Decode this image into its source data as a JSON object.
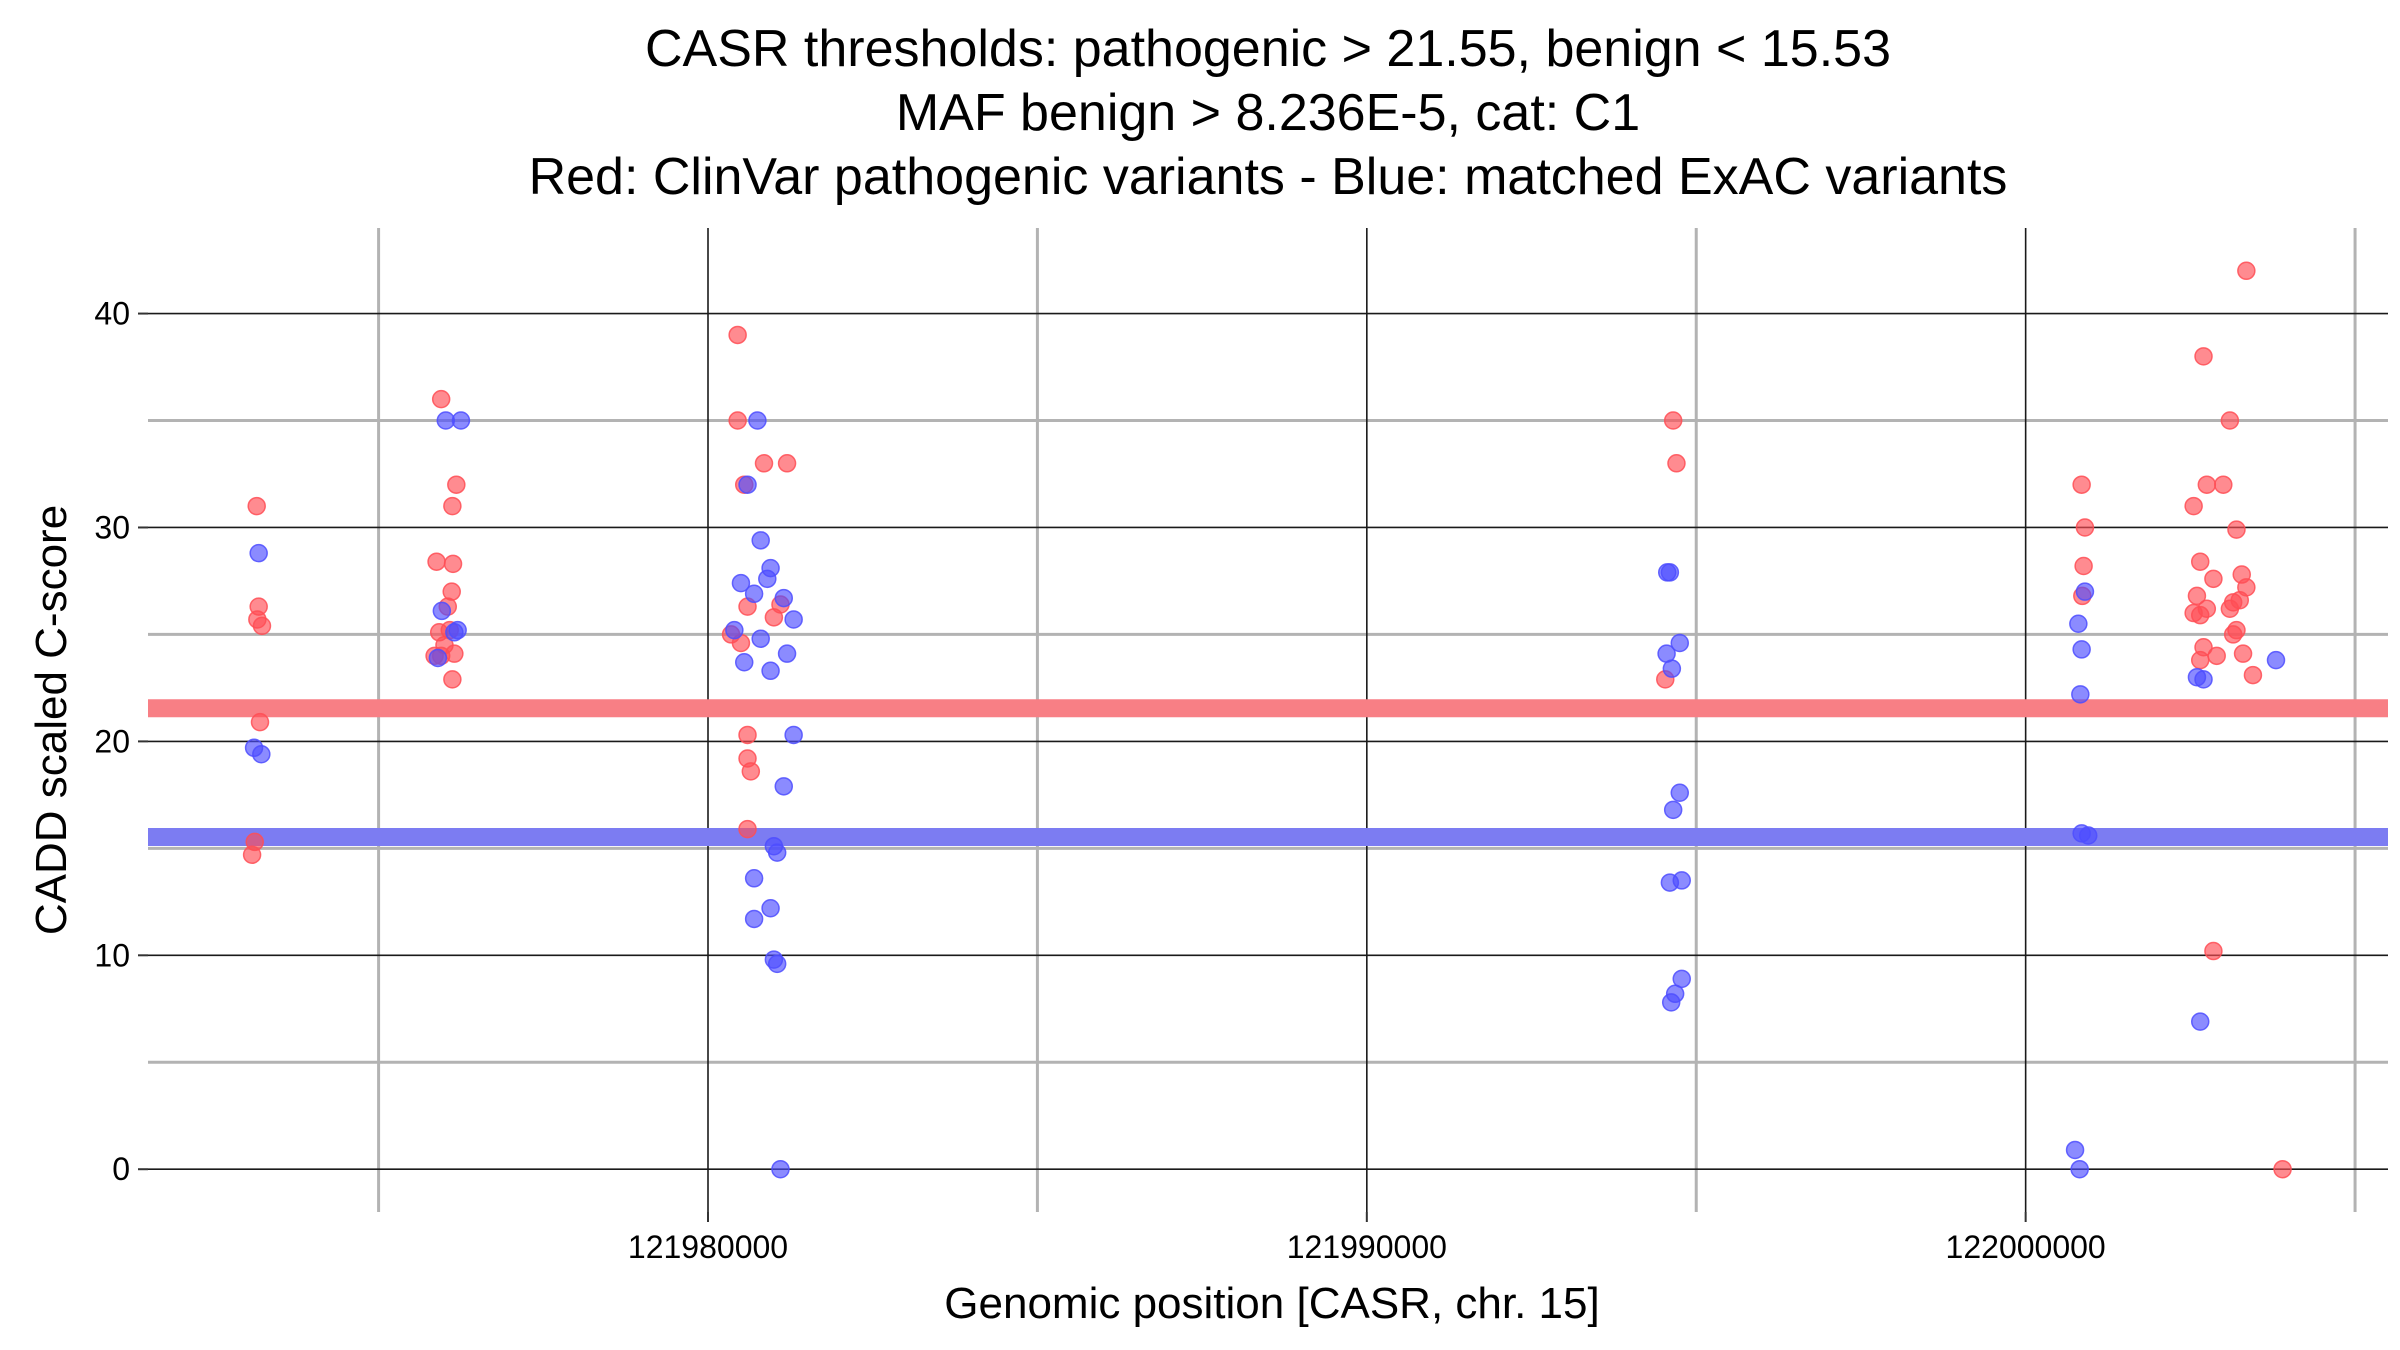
{
  "chart_data": {
    "type": "scatter",
    "title_lines": [
      "CASR thresholds: pathogenic > 21.55, benign < 15.53",
      "MAF benign > 8.236E-5, cat: C1",
      "Red: ClinVar pathogenic variants - Blue: matched ExAC variants"
    ],
    "xlabel": "Genomic position [CASR, chr. 15]",
    "ylabel": "CADD scaled C-score",
    "xlim": [
      121971500,
      122005500
    ],
    "ylim": [
      -2,
      44
    ],
    "x_major_ticks": [
      121980000,
      121990000,
      122000000
    ],
    "x_minor_ticks": [
      121975000,
      121985000,
      121995000,
      122005000
    ],
    "y_major_ticks": [
      0,
      10,
      20,
      30,
      40
    ],
    "y_minor_ticks": [
      5,
      15,
      25,
      35
    ],
    "grid": true,
    "thresholds": [
      {
        "label": "pathogenic",
        "value": 21.55,
        "color": "#f87f85"
      },
      {
        "label": "benign",
        "value": 15.53,
        "color": "#7c7cf2"
      }
    ],
    "colors": {
      "pathogenic": "#ff4d55",
      "benign": "#4d4dff"
    },
    "series": [
      {
        "key": "pathogenic",
        "points": [
          [
            121973150,
            31.0
          ],
          [
            121973180,
            26.3
          ],
          [
            121973160,
            25.7
          ],
          [
            121973230,
            25.4
          ],
          [
            121973200,
            20.9
          ],
          [
            121973120,
            15.3
          ],
          [
            121973080,
            14.7
          ],
          [
            121975950,
            36.0
          ],
          [
            121976180,
            32.0
          ],
          [
            121976120,
            31.0
          ],
          [
            121976130,
            28.3
          ],
          [
            121975880,
            28.4
          ],
          [
            121976110,
            27.0
          ],
          [
            121976050,
            26.3
          ],
          [
            121975920,
            25.1
          ],
          [
            121976080,
            25.2
          ],
          [
            121975850,
            24.0
          ],
          [
            121976000,
            24.5
          ],
          [
            121976150,
            24.1
          ],
          [
            121975950,
            24.0
          ],
          [
            121976120,
            22.9
          ],
          [
            121980450,
            39.0
          ],
          [
            121980450,
            35.0
          ],
          [
            121980850,
            33.0
          ],
          [
            121981200,
            33.0
          ],
          [
            121980550,
            32.0
          ],
          [
            121981000,
            25.8
          ],
          [
            121981100,
            26.4
          ],
          [
            121980600,
            26.3
          ],
          [
            121980350,
            25.0
          ],
          [
            121980500,
            24.6
          ],
          [
            121980600,
            20.3
          ],
          [
            121980600,
            19.2
          ],
          [
            121980650,
            18.6
          ],
          [
            121980600,
            15.9
          ],
          [
            121994650,
            35.0
          ],
          [
            121994700,
            33.0
          ],
          [
            121994530,
            22.9
          ],
          [
            122000850,
            32.0
          ],
          [
            122000900,
            30.0
          ],
          [
            122000880,
            28.2
          ],
          [
            122000860,
            26.8
          ],
          [
            122002550,
            31.0
          ],
          [
            122002750,
            32.0
          ],
          [
            122002650,
            28.4
          ],
          [
            122002850,
            27.6
          ],
          [
            122002600,
            26.8
          ],
          [
            122002750,
            26.2
          ],
          [
            122002550,
            26.0
          ],
          [
            122002650,
            25.9
          ],
          [
            122002700,
            24.4
          ],
          [
            122002650,
            23.8
          ],
          [
            122002900,
            24.0
          ],
          [
            122002700,
            38.0
          ],
          [
            122003100,
            35.0
          ],
          [
            122003000,
            32.0
          ],
          [
            122003200,
            29.9
          ],
          [
            122003280,
            27.8
          ],
          [
            122003350,
            27.2
          ],
          [
            122003150,
            26.5
          ],
          [
            122003250,
            26.6
          ],
          [
            122003100,
            26.2
          ],
          [
            122003200,
            25.2
          ],
          [
            122003150,
            25.0
          ],
          [
            122003300,
            24.1
          ],
          [
            122003450,
            23.1
          ],
          [
            122003350,
            42.0
          ],
          [
            122002850,
            10.2
          ],
          [
            122003900,
            0.0
          ]
        ]
      },
      {
        "key": "benign",
        "points": [
          [
            121973180,
            28.8
          ],
          [
            121973110,
            19.7
          ],
          [
            121973220,
            19.4
          ],
          [
            121976020,
            35.0
          ],
          [
            121976250,
            35.0
          ],
          [
            121975960,
            26.1
          ],
          [
            121976150,
            25.1
          ],
          [
            121976200,
            25.2
          ],
          [
            121975900,
            23.9
          ],
          [
            121980600,
            32.0
          ],
          [
            121980750,
            35.0
          ],
          [
            121980800,
            29.4
          ],
          [
            121980500,
            27.4
          ],
          [
            121980900,
            27.6
          ],
          [
            121980950,
            28.1
          ],
          [
            121980700,
            26.9
          ],
          [
            121981150,
            26.7
          ],
          [
            121981300,
            25.7
          ],
          [
            121980400,
            25.2
          ],
          [
            121980800,
            24.8
          ],
          [
            121981200,
            24.1
          ],
          [
            121980550,
            23.7
          ],
          [
            121980950,
            23.3
          ],
          [
            121981300,
            20.3
          ],
          [
            121981150,
            17.9
          ],
          [
            121981000,
            15.1
          ],
          [
            121981050,
            14.8
          ],
          [
            121980700,
            13.6
          ],
          [
            121980950,
            12.2
          ],
          [
            121980700,
            11.7
          ],
          [
            121981000,
            9.8
          ],
          [
            121981050,
            9.6
          ],
          [
            121981100,
            0.0
          ],
          [
            121994560,
            27.9
          ],
          [
            121994600,
            27.9
          ],
          [
            121994750,
            24.6
          ],
          [
            121994550,
            24.1
          ],
          [
            121994630,
            23.4
          ],
          [
            121994750,
            17.6
          ],
          [
            121994650,
            16.8
          ],
          [
            121994600,
            13.4
          ],
          [
            121994780,
            13.5
          ],
          [
            121994780,
            8.9
          ],
          [
            121994680,
            8.2
          ],
          [
            121994620,
            7.8
          ],
          [
            122000900,
            27.0
          ],
          [
            122000800,
            25.5
          ],
          [
            122000850,
            24.3
          ],
          [
            122000830,
            22.2
          ],
          [
            122000850,
            15.7
          ],
          [
            122000950,
            15.6
          ],
          [
            122000750,
            0.9
          ],
          [
            122000820,
            0.0
          ],
          [
            122002600,
            23.0
          ],
          [
            122002700,
            22.9
          ],
          [
            122003800,
            23.8
          ],
          [
            122002650,
            6.9
          ]
        ]
      }
    ]
  }
}
